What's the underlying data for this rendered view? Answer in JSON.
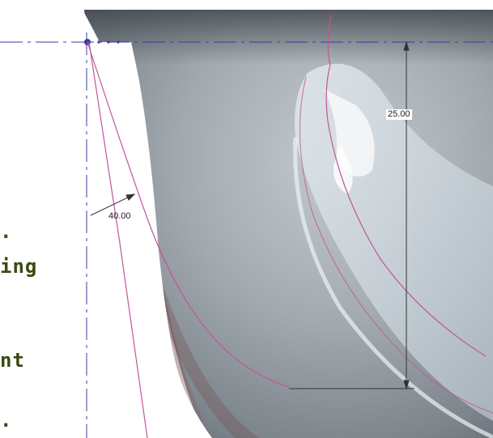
{
  "dimensions": {
    "height_value": "25.00",
    "angle_value": "40.00"
  },
  "side_text": {
    "line1": ".",
    "line2": "ing",
    "line3": "nt",
    "line4": "."
  },
  "colors": {
    "construction_line": "#3a3aa8",
    "profile_curve": "#c0559a",
    "dimension_line": "#333333",
    "side_text": "#3a4a10",
    "model_shade_dark": "#505860",
    "model_shade_light": "#c8ced3",
    "model_edge": "#6b3a3c"
  }
}
